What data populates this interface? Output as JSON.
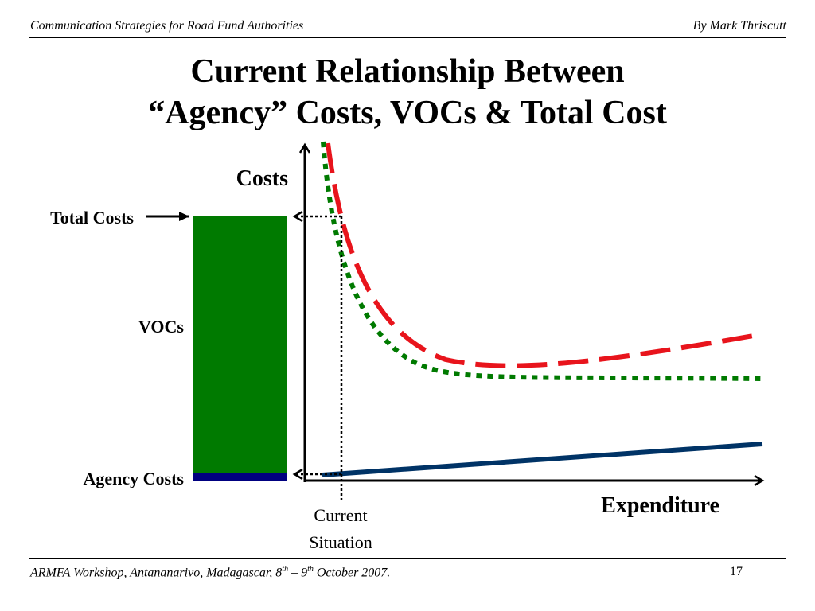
{
  "header": {
    "left": "Communication Strategies for Road Fund Authorities",
    "right": "By Mark Thriscutt"
  },
  "title": {
    "line1": "Current Relationship Between",
    "line2": "“Agency” Costs, VOCs & Total Cost"
  },
  "diagram": {
    "y_axis_label": "Costs",
    "x_axis_label": "Expenditure",
    "bar_labels": {
      "total": "Total Costs",
      "vocs": "VOCs",
      "agency": "Agency Costs"
    },
    "marker_label": {
      "line1": "Current",
      "line2": "Situation"
    },
    "colors": {
      "vocs_bar": "#007a00",
      "agency_bar": "#000080",
      "total_curve": "#e8141c",
      "voc_curve": "#007a00",
      "agency_line": "#003366"
    }
  },
  "footer": {
    "event_pre": "ARMFA Workshop, Antananarivo, Madagascar, 8",
    "sup1": "th",
    "dash": " – 9",
    "sup2": "th",
    "event_post": " October 2007.",
    "page_number": "17"
  }
}
